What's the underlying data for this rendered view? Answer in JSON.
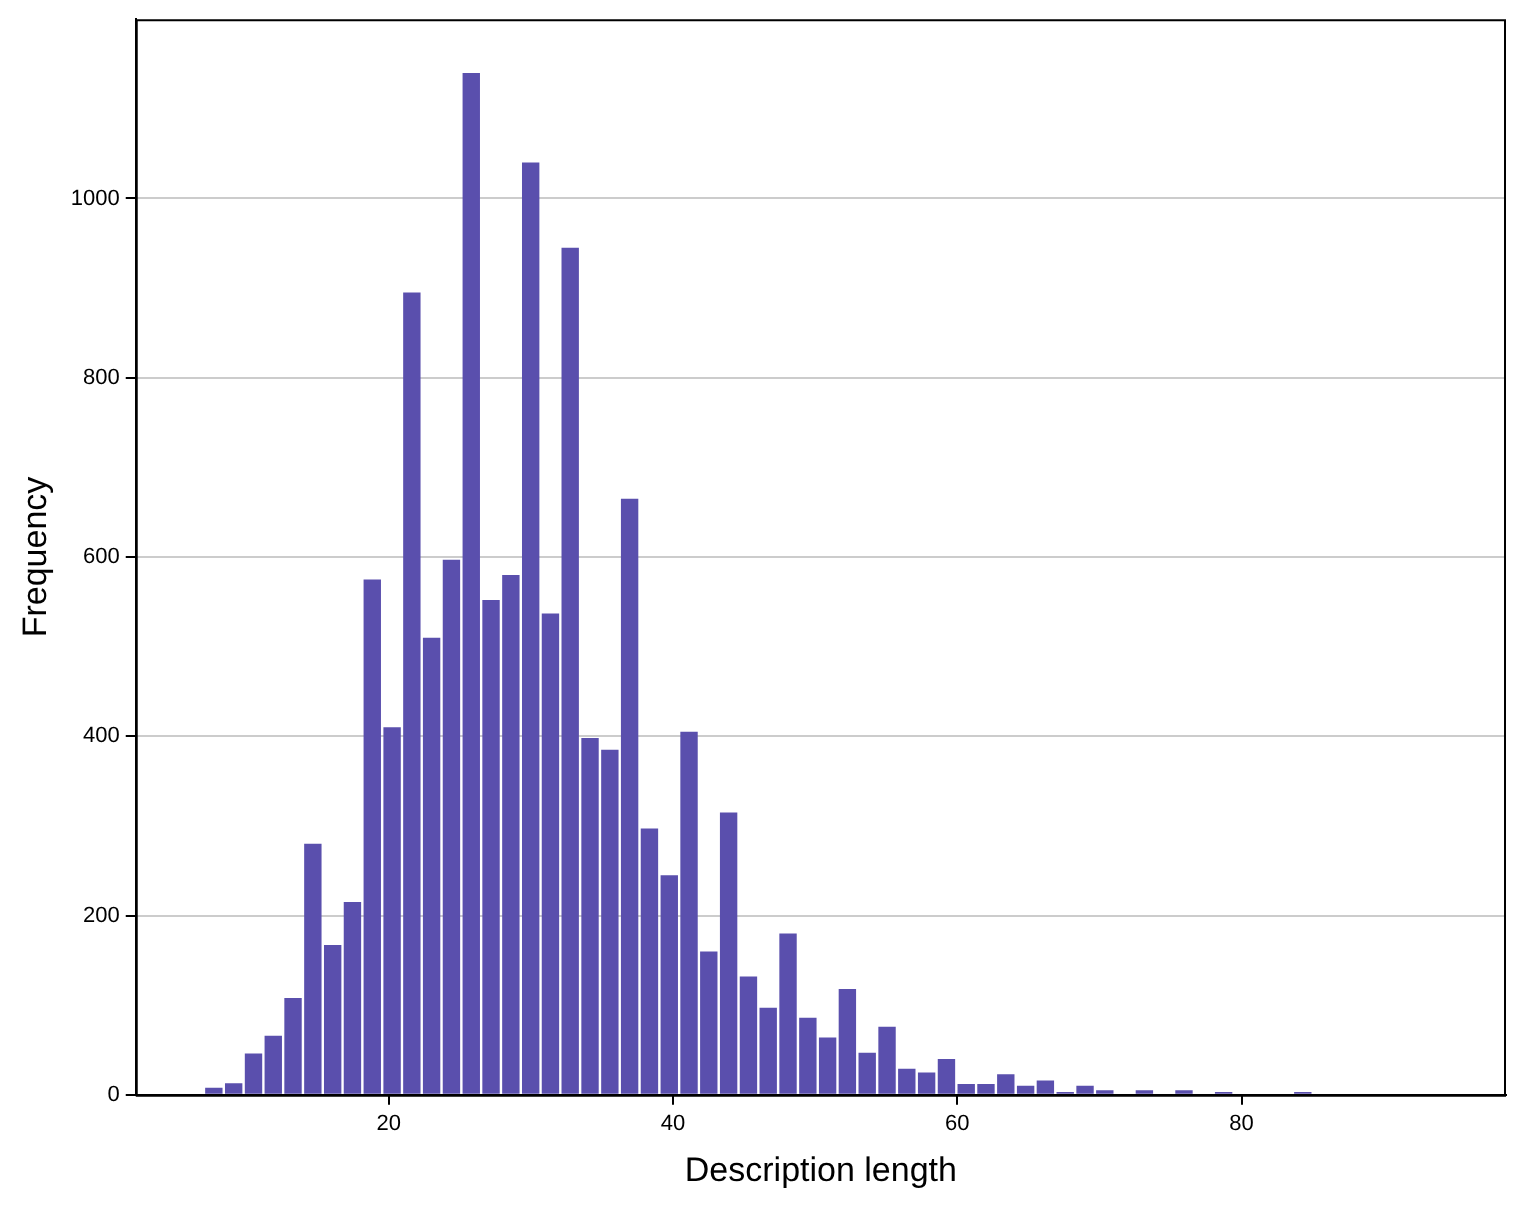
{
  "chart_data": {
    "type": "histogram",
    "xlabel": "Description length",
    "ylabel": "Frequency",
    "color": "#5a4fad",
    "bins": [
      7,
      8.39,
      9.79,
      11.18,
      12.57,
      13.96,
      15.36,
      16.75,
      18.14,
      19.54,
      20.93,
      22.32,
      23.71,
      25.11,
      26.5,
      27.89,
      29.29,
      30.68,
      32.07,
      33.46,
      34.86,
      36.25,
      37.64,
      39.04,
      40.43,
      41.82,
      43.21,
      44.61,
      46,
      47.39,
      48.79,
      50.18,
      51.57,
      52.96,
      54.36,
      55.75,
      57.14,
      58.54,
      59.93,
      61.32,
      62.71,
      64.11,
      65.5,
      66.89,
      68.29,
      69.68,
      71.07,
      72.46,
      73.86,
      75.25,
      76.64,
      78.04,
      79.43,
      80.82,
      82.21,
      83.61,
      85
    ],
    "values": [
      8,
      13,
      46,
      66,
      108,
      280,
      167,
      215,
      575,
      410,
      895,
      510,
      597,
      1140,
      552,
      580,
      1040,
      537,
      945,
      398,
      385,
      665,
      297,
      245,
      405,
      160,
      315,
      132,
      97,
      180,
      86,
      64,
      118,
      47,
      76,
      29,
      25,
      40,
      12,
      12,
      23,
      10,
      16,
      3,
      10,
      5,
      0,
      5,
      0,
      5,
      0,
      3,
      0,
      0,
      0,
      3
    ],
    "xlim": [
      2.2,
      98.6
    ],
    "xticks": [
      20,
      40,
      60,
      80
    ],
    "ylim": [
      0,
      1200
    ],
    "yticks": [
      0,
      200,
      400,
      600,
      800,
      1000
    ],
    "grid": "y",
    "legend": false
  }
}
